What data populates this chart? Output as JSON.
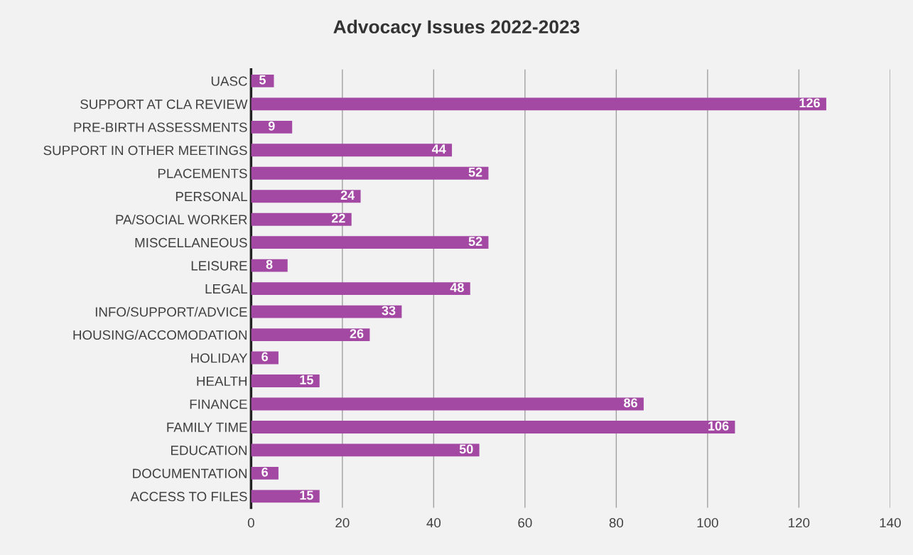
{
  "chart_data": {
    "type": "bar",
    "orientation": "horizontal",
    "title": "Advocacy Issues 2022-2023",
    "categories": [
      "UASC",
      "SUPPORT AT CLA REVIEW",
      "PRE-BIRTH ASSESSMENTS",
      "SUPPORT IN OTHER MEETINGS",
      "PLACEMENTS",
      "PERSONAL",
      "PA/SOCIAL WORKER",
      "MISCELLANEOUS",
      "LEISURE",
      "LEGAL",
      "INFO/SUPPORT/ADVICE",
      "HOUSING/ACCOMODATION",
      "HOLIDAY",
      "HEALTH",
      "FINANCE",
      "FAMILY TIME",
      "EDUCATION",
      "DOCUMENTATION",
      "ACCESS TO FILES"
    ],
    "values": [
      5,
      126,
      9,
      44,
      52,
      24,
      22,
      52,
      8,
      48,
      33,
      26,
      6,
      15,
      86,
      106,
      50,
      6,
      15
    ],
    "color": "#a349a4",
    "xlim": [
      0,
      140
    ],
    "xticks": [
      0,
      20,
      40,
      60,
      80,
      100,
      120,
      140
    ],
    "grid": "x",
    "data_labels": true,
    "legend": false
  }
}
